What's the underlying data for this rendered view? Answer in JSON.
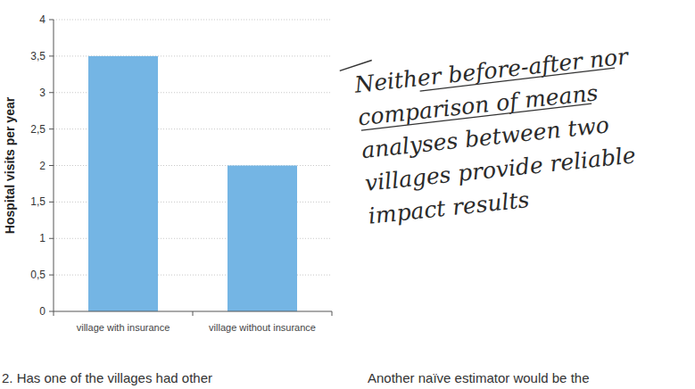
{
  "chart_data": {
    "type": "bar",
    "y_label": "Hospital visits per year",
    "categories": [
      "village with insurance",
      "village without insurance"
    ],
    "values": [
      3.5,
      2
    ],
    "color": "#74b5e4",
    "ylim": [
      0,
      4
    ],
    "yticks": [
      0,
      {
        "value": 0.5,
        "label": "0,5"
      },
      1,
      {
        "value": 1.5,
        "label": "1,5"
      },
      2,
      {
        "value": 2.5,
        "label": "2,5"
      },
      3,
      {
        "value": 3.5,
        "label": "3,5"
      },
      4
    ],
    "grid": true,
    "annotations": {
      "note": [
        "Neither before-after nor",
        "comparison of means",
        "analyses between two",
        "villages provide reliable",
        "impact results"
      ],
      "footer": [
        "2. Has one of the villages had other",
        "Another naïve estimator would be the"
      ]
    }
  }
}
